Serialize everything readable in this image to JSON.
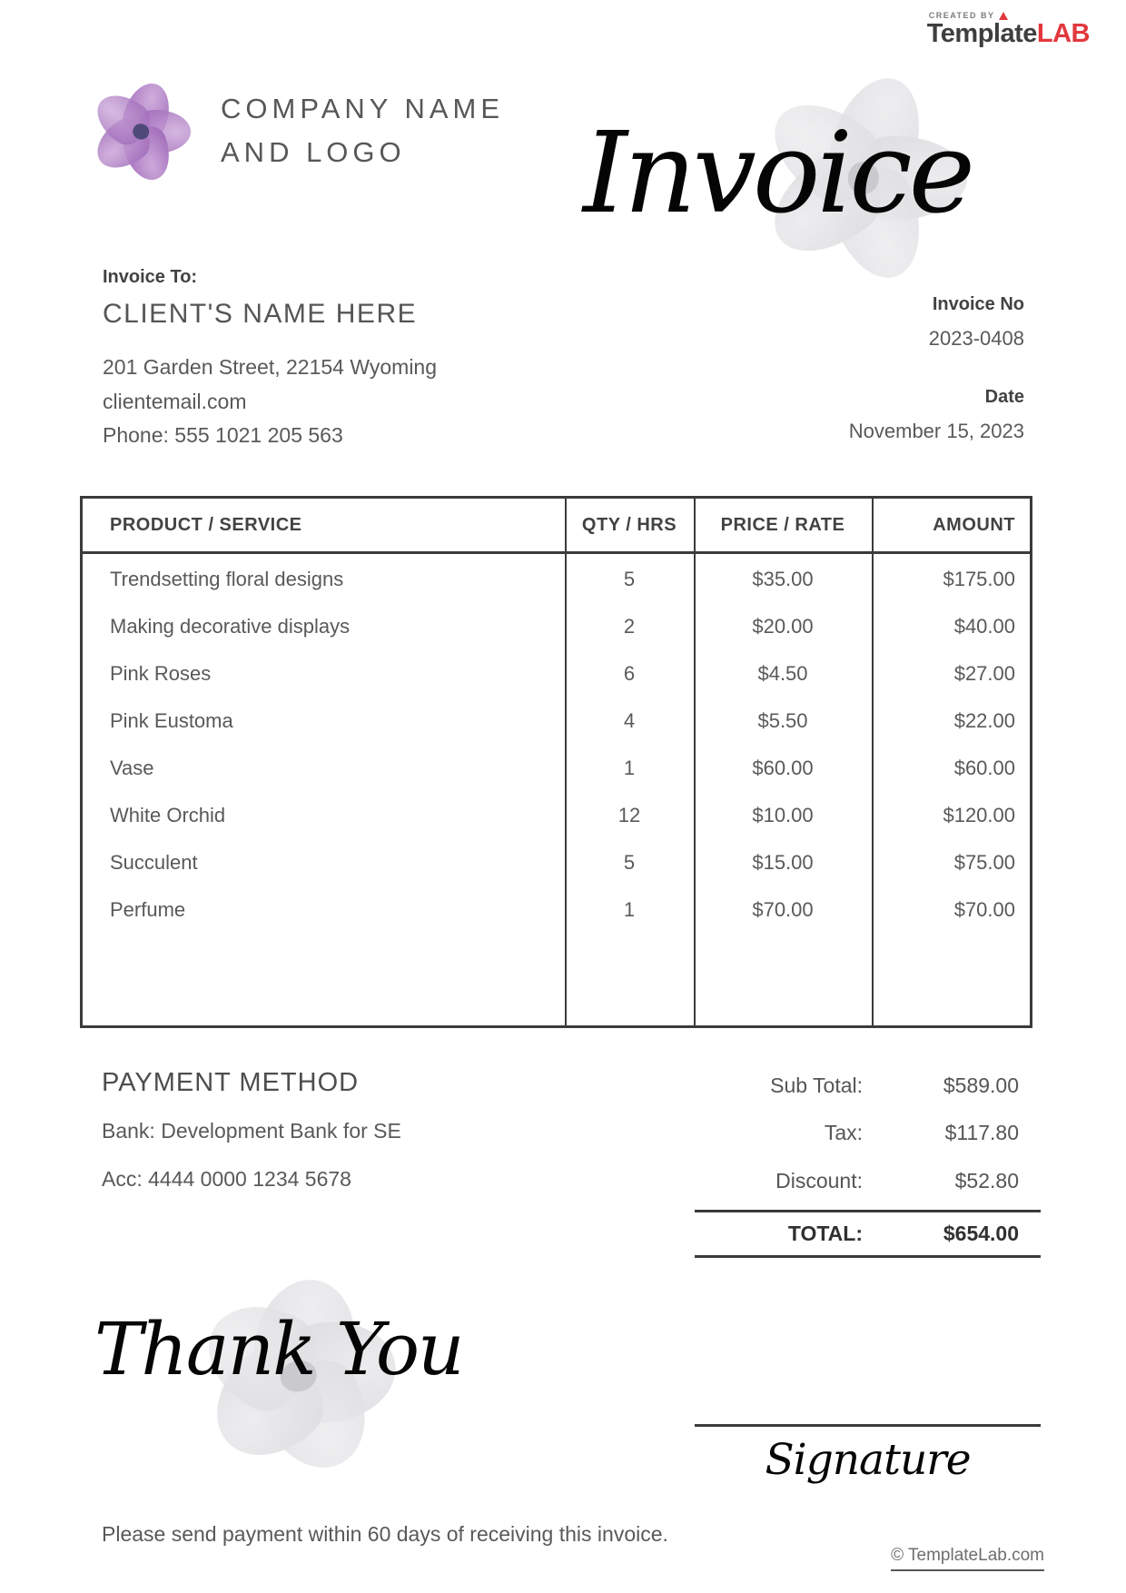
{
  "branding": {
    "created_by": "CREATED BY",
    "brand_primary": "Template",
    "brand_accent": "LAB"
  },
  "header": {
    "company_line1": "COMPANY NAME",
    "company_line2": "AND LOGO",
    "invoice_script": "Invoice"
  },
  "invoice_to": {
    "label": "Invoice To:",
    "client_name": "CLIENT'S NAME HERE",
    "address": "201 Garden Street, 22154 Wyoming",
    "email": "clientemail.com",
    "phone": "Phone: 555 1021 205 563"
  },
  "meta": {
    "invoice_no_label": "Invoice No",
    "invoice_no": "2023-0408",
    "date_label": "Date",
    "date_value": "November 15, 2023"
  },
  "table": {
    "headers": [
      "PRODUCT / SERVICE",
      "QTY / HRS",
      "PRICE / RATE",
      "AMOUNT"
    ],
    "rows": [
      {
        "product": "Trendsetting floral designs",
        "qty": "5",
        "price": "$35.00",
        "amount": "$175.00"
      },
      {
        "product": "Making decorative displays",
        "qty": "2",
        "price": "$20.00",
        "amount": "$40.00"
      },
      {
        "product": "Pink Roses",
        "qty": "6",
        "price": "$4.50",
        "amount": "$27.00"
      },
      {
        "product": "Pink Eustoma",
        "qty": "4",
        "price": "$5.50",
        "amount": "$22.00"
      },
      {
        "product": "Vase",
        "qty": "1",
        "price": "$60.00",
        "amount": "$60.00"
      },
      {
        "product": "White Orchid",
        "qty": "12",
        "price": "$10.00",
        "amount": "$120.00"
      },
      {
        "product": "Succulent",
        "qty": "5",
        "price": "$15.00",
        "amount": "$75.00"
      },
      {
        "product": "Perfume",
        "qty": "1",
        "price": "$70.00",
        "amount": "$70.00"
      }
    ]
  },
  "payment": {
    "title": "PAYMENT METHOD",
    "bank": "Bank: Development Bank for SE",
    "account": "Acc: 4444 0000 1234 5678"
  },
  "totals": {
    "rows": [
      {
        "label": "Sub Total:",
        "value": "$589.00"
      },
      {
        "label": "Tax:",
        "value": "$117.80"
      },
      {
        "label": "Discount:",
        "value": "$52.80"
      }
    ],
    "total_label": "TOTAL:",
    "total_value": "$654.00"
  },
  "closing": {
    "thank_you": "Thank You",
    "signature": "Signature"
  },
  "footer": {
    "note": "Please send payment within 60 days of receiving this invoice.",
    "copyright": "© TemplateLab.com"
  },
  "colors": {
    "accent_red": "#E2383C",
    "text_gray": "#58595B",
    "border_dark": "#3B3B3D",
    "flower_purple": "#A878BC"
  }
}
